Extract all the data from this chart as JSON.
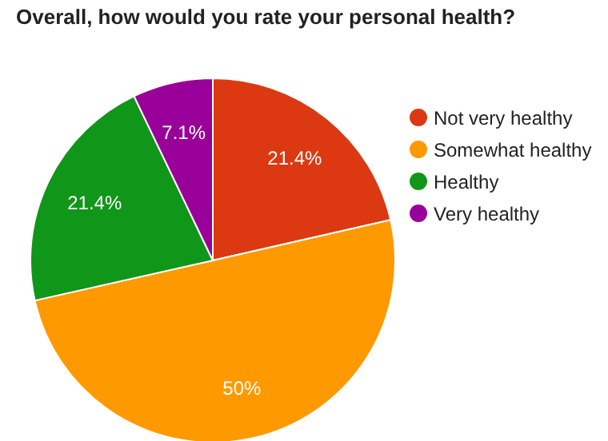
{
  "chart_data": {
    "type": "pie",
    "title": "Overall, how would you rate your personal health?",
    "categories": [
      "Not very healthy",
      "Somewhat healthy",
      "Healthy",
      "Very healthy"
    ],
    "values": [
      21.4,
      50,
      21.4,
      7.1
    ],
    "value_labels": [
      "21.4%",
      "50%",
      "21.4%",
      "7.1%"
    ],
    "colors": [
      "#dc3912",
      "#ff9900",
      "#109618",
      "#990099"
    ],
    "legend": "right"
  }
}
